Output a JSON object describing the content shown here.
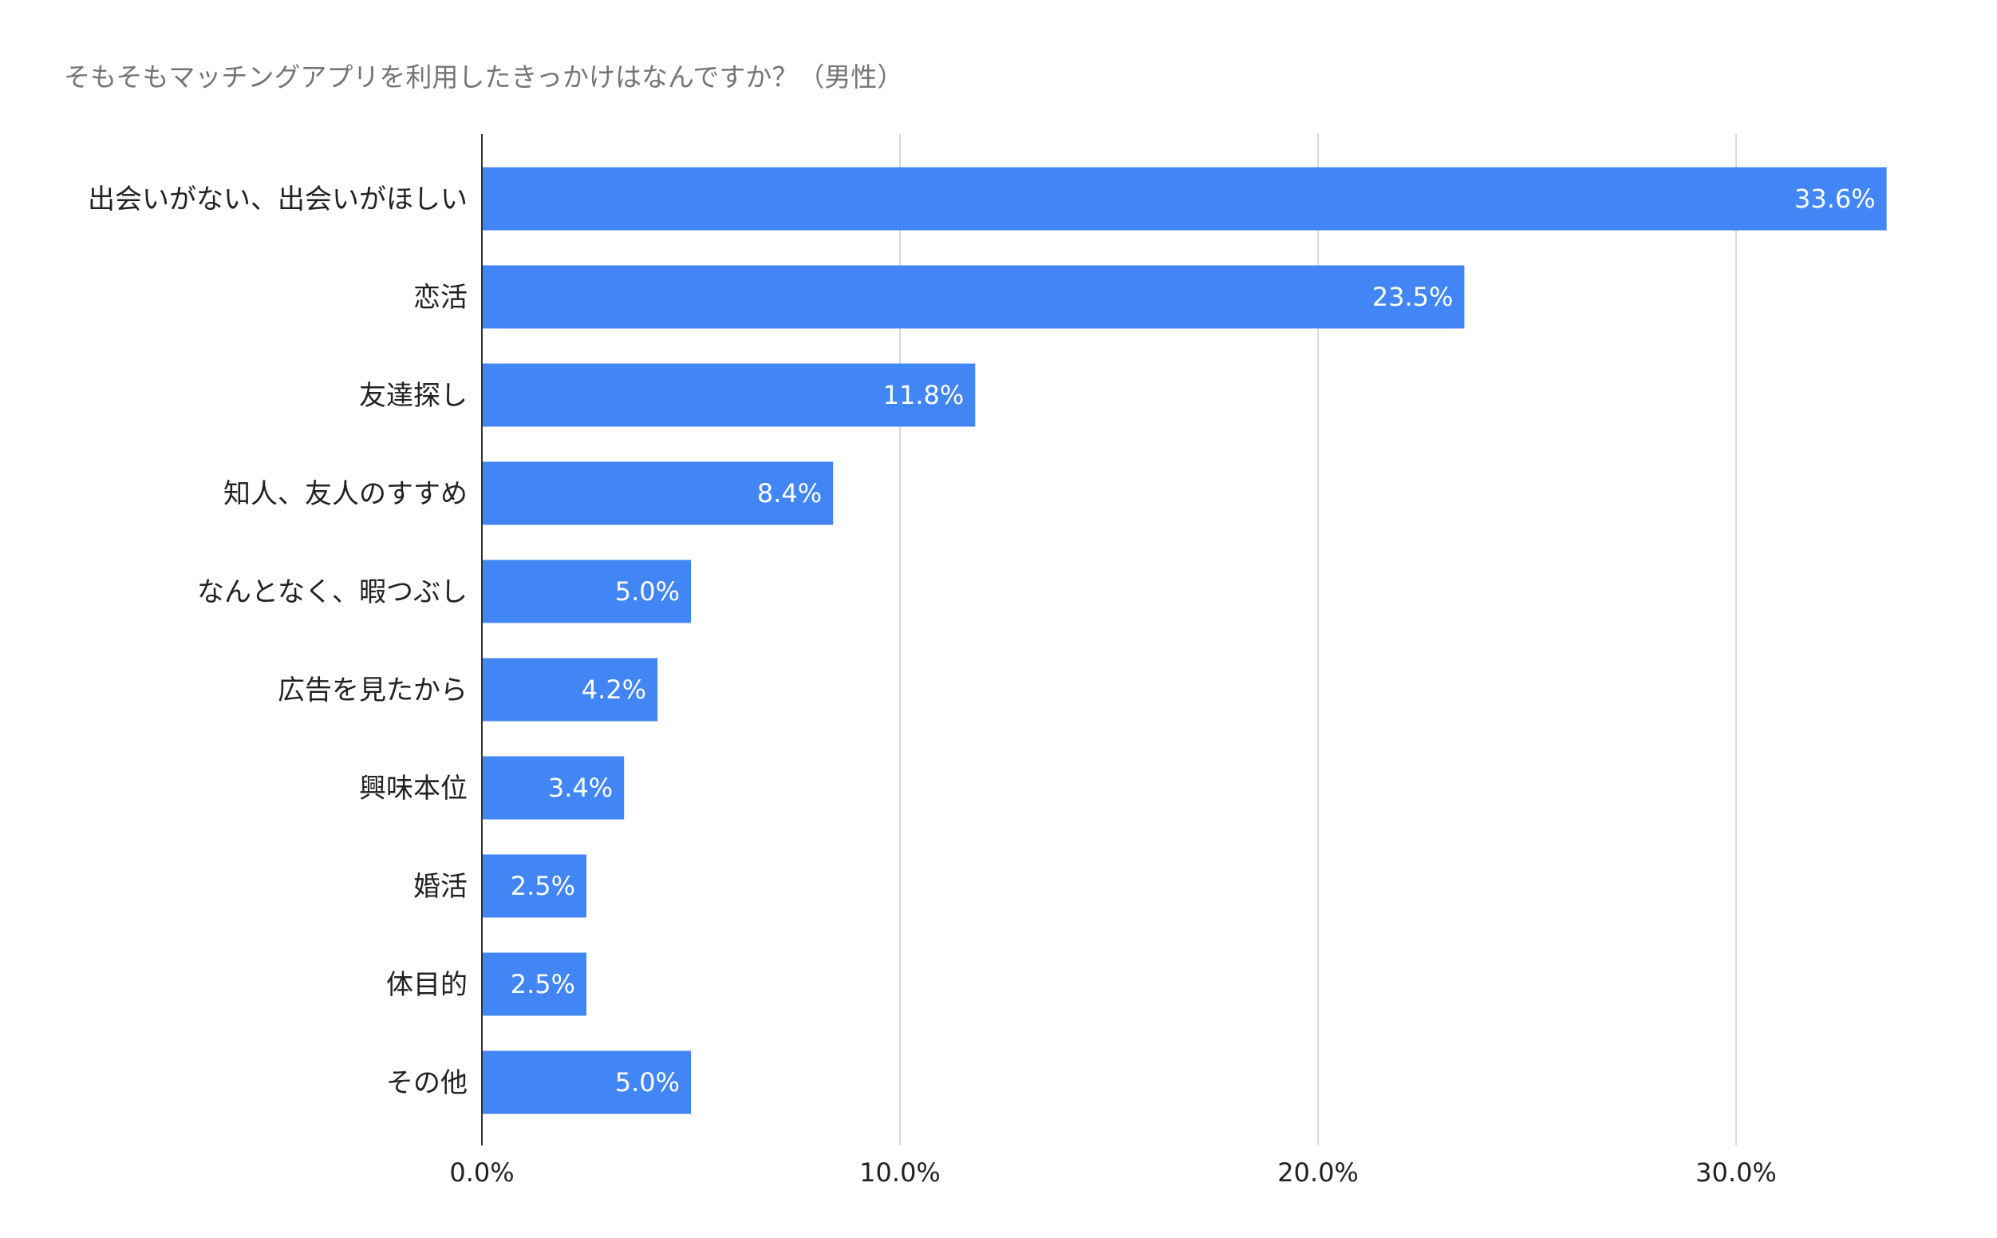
{
  "chart_data": {
    "type": "bar",
    "orientation": "horizontal",
    "title": "そもそもマッチングアプリを利用したきっかけはなんですか？（男性）",
    "categories": [
      "出会いがない、出会いがほしい",
      "恋活",
      "友達探し",
      "知人、友人のすすめ",
      "なんとなく、暇つぶし",
      "広告を見たから",
      "興味本位",
      "婚活",
      "体目的",
      "その他"
    ],
    "values": [
      33.6,
      23.5,
      11.8,
      8.4,
      5.0,
      4.2,
      3.4,
      2.5,
      2.5,
      5.0
    ],
    "value_labels": [
      "33.6%",
      "23.5%",
      "11.8%",
      "8.4%",
      "5.0%",
      "4.2%",
      "3.4%",
      "2.5%",
      "2.5%",
      "5.0%"
    ],
    "xlabel": "",
    "ylabel": "",
    "xlim": [
      0,
      35
    ],
    "x_ticks": [
      0,
      10,
      20,
      30
    ],
    "x_tick_labels": [
      "0.0%",
      "10.0%",
      "20.0%",
      "30.0%"
    ],
    "grid": true,
    "legend": "none",
    "colors": {
      "bar": "#4285f4",
      "grid": "#d9d9d9",
      "axis": "#333333",
      "title": "#757575",
      "text": "#222222"
    }
  }
}
